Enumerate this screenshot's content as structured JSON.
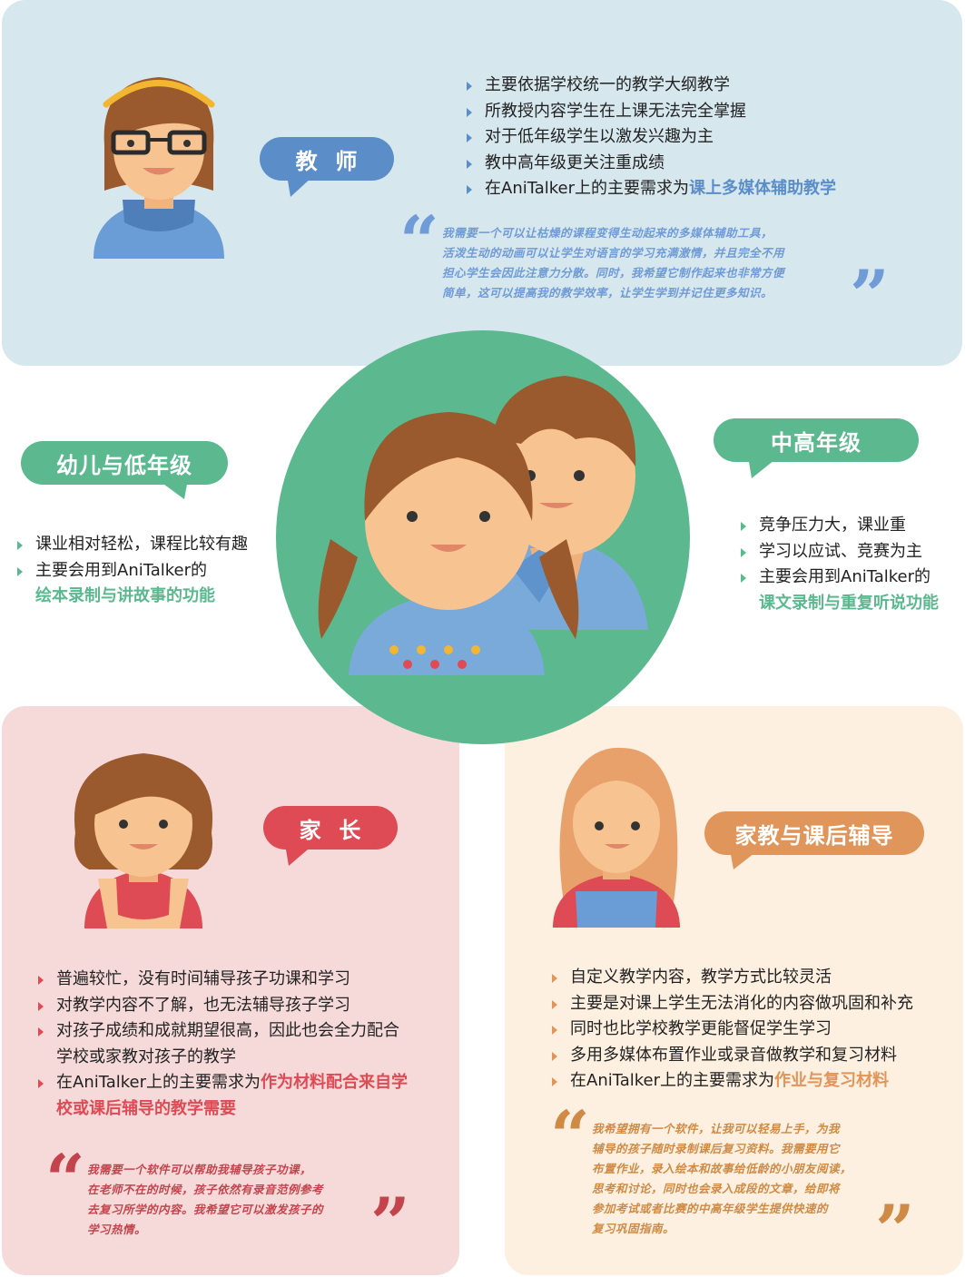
{
  "colors": {
    "blue": "#5b8ec9",
    "green": "#5bb88f",
    "red": "#de4b54",
    "orange": "#e0955a",
    "quote_blue": "#6f9bd6",
    "quote_red": "#c4444d",
    "quote_orange": "#cf8a45"
  },
  "teacher": {
    "label": "教  师",
    "points": [
      "主要依据学校统一的教学大纲教学",
      "所教授内容学生在上课无法完全掌握",
      "对于低年级学生以激发兴趣为主",
      "教中高年级更关注重成绩"
    ],
    "need_prefix": "在AniTalker上的主要需求为",
    "need_highlight": "课上多媒体辅助教学",
    "quote": [
      "我需要一个可以让枯燥的课程变得生动起来的多媒体辅助工具，",
      "活泼生动的动画可以让学生对语言的学习充满激情，并且完全不用",
      "担心学生会因此注意力分散。同时，我希望它制作起来也非常方便",
      "简单，这可以提高我的教学效率，让学生学到并记住更多知识。"
    ]
  },
  "young": {
    "label": "幼儿与低年级",
    "points": [
      "课业相对轻松，课程比较有趣",
      "主要会用到AniTalker的"
    ],
    "highlight": "绘本录制与讲故事的功能"
  },
  "senior": {
    "label": "中高年级",
    "points": [
      "竞争压力大，课业重",
      "学习以应试、竞赛为主",
      "主要会用到AniTalker的"
    ],
    "highlight": "课文录制与重复听说功能"
  },
  "parent": {
    "label": "家  长",
    "points": [
      "普遍较忙，没有时间辅导孩子功课和学习",
      "对教学内容不了解，也无法辅导孩子学习"
    ],
    "point3_line1": "对孩子成绩和成就期望很高，因此也会全力配合",
    "point3_line2": "学校或家教对孩子的教学",
    "need_prefix": "在AniTalker上的主要需求为",
    "need_highlight_1": "作为材料配合来自学",
    "need_highlight_2": "校或课后辅导的教学需要",
    "quote": [
      "我需要一个软件可以帮助我辅导孩子功课，",
      "在老师不在的时候，孩子依然有录音范例参考",
      "去复习所学的内容。我希望它可以激发孩子的",
      "学习热情。"
    ]
  },
  "tutor": {
    "label": "家教与课后辅导",
    "points": [
      "自定义教学内容，教学方式比较灵活",
      "主要是对课上学生无法消化的内容做巩固和补充",
      "同时也比学校教学更能督促学生学习",
      "多用多媒体布置作业或录音做教学和复习材料"
    ],
    "need_prefix": "在AniTalker上的主要需求为",
    "need_highlight": "作业与复习材料",
    "quote": [
      "我希望拥有一个软件，让我可以轻易上手，为我",
      "辅导的孩子随时录制课后复习资料。我需要用它",
      "布置作业，录入绘本和故事给低龄的小朋友阅读，",
      "思考和讨论，同时也会录入成段的文章，给即将",
      "参加考试或者比赛的中高年级学生提供快速的",
      "复习巩固指南。"
    ]
  },
  "icons": [
    "teacher-avatar-icon",
    "children-avatar-icon",
    "parent-avatar-icon",
    "tutor-avatar-icon",
    "quote-open-icon",
    "quote-close-icon"
  ]
}
